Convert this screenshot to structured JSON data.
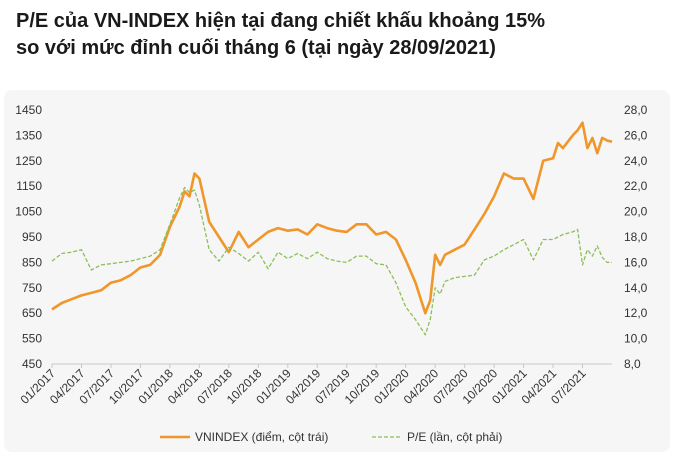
{
  "title_line1": "P/E của VN-INDEX hiện tại đang chiết khấu khoảng 15%",
  "title_line2": "so với mức đỉnh cuối tháng 6 (tại ngày 28/09/2021)",
  "colors": {
    "vnindex": "#f0962a",
    "pe": "#8cbf5a",
    "background": "#f6f6f6"
  },
  "chart_data": {
    "type": "line",
    "x_tick_labels": [
      "01/2017",
      "04/2017",
      "07/2017",
      "10/2017",
      "01/2018",
      "04/2018",
      "07/2018",
      "10/2018",
      "01/2019",
      "04/2019",
      "07/2019",
      "10/2019",
      "01/2020",
      "04/2020",
      "07/2020",
      "10/2020",
      "01/2021",
      "04/2021",
      "07/2021"
    ],
    "y_left_ticks": [
      "450",
      "550",
      "650",
      "750",
      "850",
      "950",
      "1050",
      "1150",
      "1250",
      "1350",
      "1450"
    ],
    "y_right_ticks": [
      "8,0",
      "10,0",
      "12,0",
      "14,0",
      "16,0",
      "18,0",
      "20,0",
      "22,0",
      "24,0",
      "26,0",
      "28,0"
    ],
    "ylim_left": [
      450,
      1450
    ],
    "ylim_right": [
      8,
      28
    ],
    "xlim": [
      0,
      57
    ],
    "x_unit": "months since 01/2017",
    "series": [
      {
        "name": "VNINDEX (điểm, cột trái)",
        "axis": "left",
        "style": "solid",
        "x": [
          0,
          1,
          2,
          3,
          4,
          5,
          6,
          7,
          8,
          9,
          10,
          11,
          12,
          13,
          13.5,
          14,
          14.5,
          15,
          16,
          17,
          18,
          19,
          20,
          21,
          22,
          23,
          24,
          25,
          26,
          27,
          28,
          29,
          30,
          31,
          32,
          33,
          34,
          35,
          36,
          37,
          38,
          38.5,
          39,
          39.5,
          40,
          41,
          42,
          43,
          44,
          45,
          46,
          47,
          48,
          49,
          50,
          51,
          51.5,
          52,
          53,
          53.5,
          54,
          54.5,
          55,
          55.5,
          56,
          56.5,
          57
        ],
        "values": [
          665,
          690,
          705,
          720,
          730,
          740,
          770,
          780,
          800,
          830,
          840,
          880,
          990,
          1070,
          1130,
          1110,
          1200,
          1180,
          1010,
          950,
          890,
          970,
          910,
          940,
          970,
          985,
          975,
          980,
          960,
          1000,
          985,
          975,
          970,
          1000,
          1000,
          960,
          970,
          940,
          860,
          770,
          650,
          700,
          880,
          840,
          880,
          900,
          920,
          980,
          1040,
          1110,
          1200,
          1180,
          1180,
          1100,
          1250,
          1260,
          1320,
          1300,
          1350,
          1370,
          1400,
          1300,
          1340,
          1280,
          1340,
          1330,
          1325
        ]
      },
      {
        "name": "P/E (lần, cột phải)",
        "axis": "right",
        "style": "dashed",
        "x": [
          0,
          1,
          2,
          3,
          4,
          5,
          6,
          7,
          8,
          9,
          10,
          11,
          12,
          13,
          13.5,
          14,
          14.5,
          15,
          16,
          17,
          18,
          19,
          20,
          21,
          22,
          23,
          24,
          25,
          26,
          27,
          28,
          29,
          30,
          31,
          32,
          33,
          34,
          35,
          36,
          37,
          38,
          38.5,
          39,
          39.5,
          40,
          41,
          42,
          43,
          44,
          45,
          46,
          47,
          48,
          49,
          50,
          51,
          52,
          53,
          53.5,
          54,
          54.5,
          55,
          55.5,
          56,
          56.5,
          57
        ],
        "values": [
          16.1,
          16.7,
          16.8,
          17.0,
          15.4,
          15.8,
          15.9,
          16.0,
          16.1,
          16.3,
          16.5,
          17.0,
          19.0,
          21.1,
          21.9,
          21.5,
          21.7,
          20.5,
          17.0,
          16.1,
          17.2,
          16.7,
          16.1,
          16.8,
          15.5,
          16.8,
          16.3,
          16.7,
          16.3,
          16.8,
          16.3,
          16.1,
          16.0,
          16.5,
          16.5,
          15.9,
          15.8,
          14.4,
          12.5,
          11.5,
          10.3,
          11.5,
          14.0,
          13.5,
          14.5,
          14.8,
          14.9,
          15.0,
          16.2,
          16.5,
          17.0,
          17.4,
          17.8,
          16.2,
          17.8,
          17.8,
          18.2,
          18.4,
          18.6,
          15.8,
          17.0,
          16.5,
          17.3,
          16.4,
          16.0,
          16.0
        ]
      }
    ]
  }
}
